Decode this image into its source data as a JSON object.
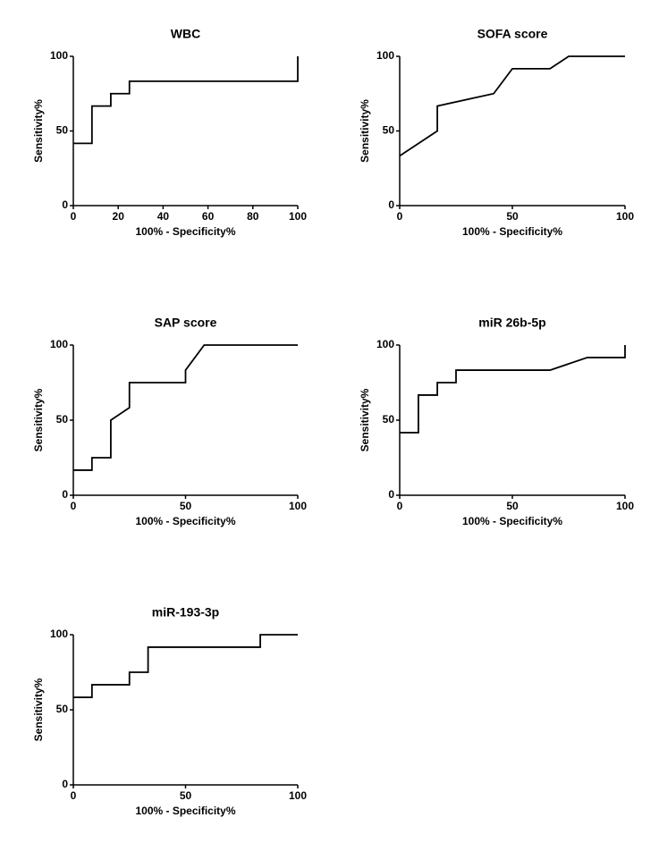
{
  "chart_data": [
    {
      "type": "line",
      "title": "WBC",
      "xlabel": "100% - Specificity%",
      "ylabel": "Sensitivity%",
      "x": [
        0,
        8.3,
        8.3,
        16.7,
        16.7,
        25,
        25,
        100,
        100
      ],
      "values": [
        41.7,
        41.7,
        66.7,
        66.7,
        75,
        75,
        83.3,
        83.3,
        100
      ],
      "xlim": [
        0,
        100
      ],
      "ylim": [
        0,
        100
      ],
      "xticks": [
        0,
        20,
        40,
        60,
        80,
        100
      ],
      "yticks": [
        0,
        50,
        100
      ],
      "color": "#000000"
    },
    {
      "type": "line",
      "title": "SOFA score",
      "xlabel": "100% - Specificity%",
      "ylabel": "Sensitivity%",
      "x": [
        0,
        16.7,
        16.7,
        41.7,
        50,
        66.7,
        75,
        100
      ],
      "values": [
        33.3,
        50,
        66.7,
        75,
        91.7,
        91.7,
        100,
        100
      ],
      "xlim": [
        0,
        100
      ],
      "ylim": [
        0,
        100
      ],
      "xticks": [
        0,
        50,
        100
      ],
      "yticks": [
        0,
        50,
        100
      ],
      "color": "#000000"
    },
    {
      "type": "line",
      "title": "SAP score",
      "xlabel": "100% - Specificity%",
      "ylabel": "Sensitivity%",
      "x": [
        0,
        8.3,
        8.3,
        16.7,
        16.7,
        25,
        25,
        50,
        50,
        58.3,
        100
      ],
      "values": [
        16.7,
        16.7,
        25,
        25,
        50,
        58.3,
        75,
        75,
        83.3,
        100,
        100
      ],
      "xlim": [
        0,
        100
      ],
      "ylim": [
        0,
        100
      ],
      "xticks": [
        0,
        50,
        100
      ],
      "yticks": [
        0,
        50,
        100
      ],
      "color": "#000000"
    },
    {
      "type": "line",
      "title": "miR 26b-5p",
      "xlabel": "100% - Specificity%",
      "ylabel": "Sensitivity%",
      "x": [
        0,
        8.3,
        8.3,
        16.7,
        16.7,
        25,
        25,
        66.7,
        83.3,
        100,
        100
      ],
      "values": [
        41.7,
        41.7,
        66.7,
        66.7,
        75,
        75,
        83.3,
        83.3,
        91.7,
        91.7,
        100
      ],
      "xlim": [
        0,
        100
      ],
      "ylim": [
        0,
        100
      ],
      "xticks": [
        0,
        50,
        100
      ],
      "yticks": [
        0,
        50,
        100
      ],
      "color": "#000000"
    },
    {
      "type": "line",
      "title": "miR-193-3p",
      "xlabel": "100% - Specificity%",
      "ylabel": "Sensitivity%",
      "x": [
        0,
        8.3,
        8.3,
        25,
        25,
        33.3,
        33.3,
        83.3,
        83.3,
        100
      ],
      "values": [
        58.3,
        58.3,
        66.7,
        66.7,
        75,
        75,
        91.7,
        91.7,
        100,
        100
      ],
      "xlim": [
        0,
        100
      ],
      "ylim": [
        0,
        100
      ],
      "xticks": [
        0,
        50,
        100
      ],
      "yticks": [
        0,
        50,
        100
      ],
      "color": "#000000"
    }
  ]
}
